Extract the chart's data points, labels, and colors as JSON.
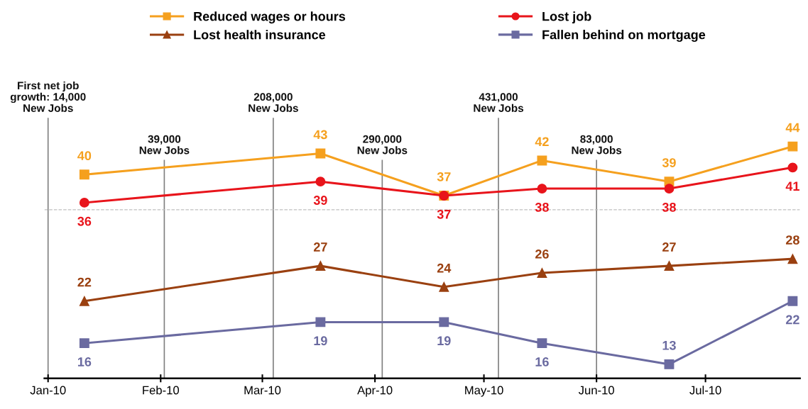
{
  "chart_data": {
    "type": "line",
    "x": [
      "2010-01-11",
      "2010-03-17",
      "2010-04-20",
      "2010-05-17",
      "2010-06-21",
      "2010-07-25"
    ],
    "series": [
      {
        "name": "Reduced wages or hours",
        "color": "#f5a01e",
        "marker": "square",
        "values": [
          40,
          43,
          37,
          42,
          39,
          44
        ]
      },
      {
        "name": "Lost job",
        "color": "#e8141b",
        "marker": "circle",
        "values": [
          36,
          39,
          37,
          38,
          38,
          41
        ]
      },
      {
        "name": "Lost health insurance",
        "color": "#9a4010",
        "marker": "triangle",
        "values": [
          22,
          27,
          24,
          26,
          27,
          28
        ]
      },
      {
        "name": "Fallen behind on mortgage",
        "color": "#6a6aa0",
        "marker": "square",
        "values": [
          16,
          19,
          19,
          16,
          13,
          22
        ]
      }
    ],
    "data_labels": true,
    "xlim": [
      "2009-12-31",
      "2010-07-27"
    ],
    "xticks": [
      {
        "value": "2010-01-01",
        "label": "Jan-10"
      },
      {
        "value": "2010-02-01",
        "label": "Feb-10"
      },
      {
        "value": "2010-03-01",
        "label": "Mar-10"
      },
      {
        "value": "2010-04-01",
        "label": "Apr-10"
      },
      {
        "value": "2010-05-01",
        "label": "May-10"
      },
      {
        "value": "2010-06-01",
        "label": "Jun-10"
      },
      {
        "value": "2010-07-01",
        "label": "Jul-10"
      }
    ],
    "tick_labels": "x",
    "grid": false,
    "legend": "top",
    "line_style": "solid",
    "ref_lines": [
      {
        "axis": "x",
        "value": "2010-01-01",
        "label": "First net job\ngrowth: 14,000\nNew Jobs",
        "color": "#808080"
      },
      {
        "axis": "x",
        "value": "2010-02-02",
        "label": "39,000\nNew Jobs",
        "color": "#808080"
      },
      {
        "axis": "x",
        "value": "2010-03-04",
        "label": "208,000\nNew Jobs",
        "color": "#808080"
      },
      {
        "axis": "x",
        "value": "2010-04-03",
        "label": "290,000\nNew Jobs",
        "color": "#808080"
      },
      {
        "axis": "x",
        "value": "2010-05-05",
        "label": "431,000\nNew Jobs",
        "color": "#808080"
      },
      {
        "axis": "x",
        "value": "2010-06-01",
        "label": "83,000\nNew Jobs",
        "color": "#808080"
      },
      {
        "axis": "y",
        "value": 35,
        "label": null,
        "color": "#c0c0c0",
        "line_style": "dashed"
      }
    ]
  }
}
